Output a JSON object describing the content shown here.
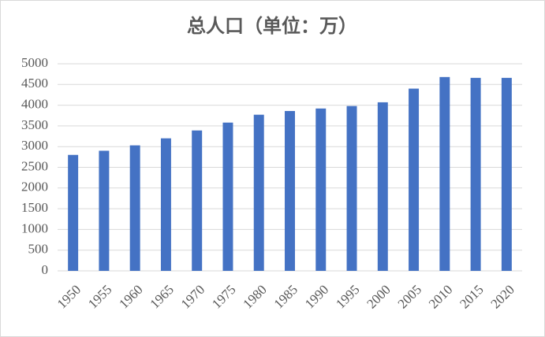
{
  "chart_data": {
    "type": "bar",
    "title": "总人口（单位：万）",
    "categories": [
      "1950",
      "1955",
      "1960",
      "1965",
      "1970",
      "1975",
      "1980",
      "1985",
      "1990",
      "1995",
      "2000",
      "2005",
      "2010",
      "2015",
      "2020"
    ],
    "values": [
      2800,
      2900,
      3030,
      3200,
      3390,
      3580,
      3770,
      3860,
      3920,
      3980,
      4070,
      4400,
      4680,
      4660,
      4660
    ],
    "color": "#4472c4",
    "ylim": [
      0,
      5000
    ],
    "yticks": [
      0,
      500,
      1000,
      1500,
      2000,
      2500,
      3000,
      3500,
      4000,
      4500,
      5000
    ],
    "grid": true
  }
}
